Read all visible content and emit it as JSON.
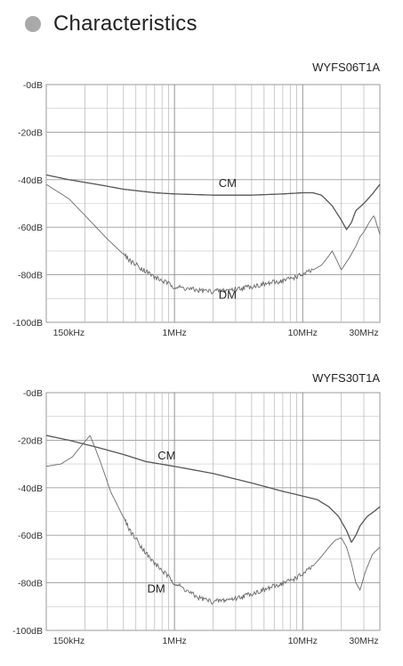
{
  "header": {
    "title": "Characteristics",
    "bullet_color": "#a9a9a9"
  },
  "chart_data": [
    {
      "type": "line",
      "title": "WYFS06T1A",
      "xscale": "log",
      "xlim_hz": [
        100000,
        40000000
      ],
      "ylim": [
        -100,
        0
      ],
      "grid": true,
      "x_ticks": [
        {
          "label": "150kHz",
          "hz": 150000
        },
        {
          "label": "1MHz",
          "hz": 1000000
        },
        {
          "label": "10MHz",
          "hz": 10000000
        },
        {
          "label": "30MHz",
          "hz": 30000000
        }
      ],
      "y_ticks": [
        "-0dB",
        "-20dB",
        "-40dB",
        "-60dB",
        "-80dB",
        "-100dB"
      ],
      "y_tick_values": [
        0,
        -20,
        -40,
        -60,
        -80,
        -100
      ],
      "series": [
        {
          "name": "CM",
          "label_at": {
            "hz": 2600000,
            "db": -43
          },
          "x_hz": [
            100000,
            150000,
            250000,
            400000,
            700000,
            1000000,
            2000000,
            4000000,
            7000000,
            10000000,
            12000000,
            14000000,
            17000000,
            20000000,
            22000000,
            24000000,
            26000000,
            30000000,
            35000000,
            40000000
          ],
          "y_db": [
            -38,
            -40,
            -42,
            -44,
            -45.5,
            -46,
            -46.5,
            -46.5,
            -46,
            -45.5,
            -45.5,
            -46.5,
            -51,
            -57,
            -61,
            -58,
            -53,
            -50,
            -46,
            -42
          ]
        },
        {
          "name": "DM",
          "label_at": {
            "hz": 2600000,
            "db": -90
          },
          "x_hz": [
            100000,
            150000,
            200000,
            300000,
            450000,
            700000,
            1000000,
            1500000,
            2000000,
            3000000,
            5000000,
            7000000,
            10000000,
            12000000,
            14000000,
            15500000,
            17000000,
            18500000,
            20000000,
            23000000,
            26000000,
            28000000,
            30000000,
            33000000,
            36000000,
            40000000
          ],
          "y_db": [
            -42,
            -48,
            -55,
            -65,
            -74,
            -81,
            -85,
            -86.5,
            -87,
            -86,
            -84,
            -82.5,
            -80,
            -78,
            -76,
            -73,
            -70,
            -74,
            -78,
            -73,
            -68,
            -64,
            -62,
            -58,
            -55,
            -63
          ]
        }
      ]
    },
    {
      "type": "line",
      "title": "WYFS30T1A",
      "xscale": "log",
      "xlim_hz": [
        100000,
        40000000
      ],
      "ylim": [
        -100,
        0
      ],
      "grid": true,
      "x_ticks": [
        {
          "label": "150kHz",
          "hz": 150000
        },
        {
          "label": "1MHz",
          "hz": 1000000
        },
        {
          "label": "10MHz",
          "hz": 10000000
        },
        {
          "label": "30MHz",
          "hz": 30000000
        }
      ],
      "y_ticks": [
        "-0dB",
        "-20dB",
        "-40dB",
        "-60dB",
        "-80dB",
        "-100dB"
      ],
      "y_tick_values": [
        0,
        -20,
        -40,
        -60,
        -80,
        -100
      ],
      "series": [
        {
          "name": "CM",
          "label_at": {
            "hz": 870000,
            "db": -28
          },
          "x_hz": [
            100000,
            150000,
            250000,
            400000,
            600000,
            1000000,
            2000000,
            4000000,
            7000000,
            10000000,
            13000000,
            16000000,
            19000000,
            22000000,
            24000000,
            26000000,
            28000000,
            32000000,
            36000000,
            40000000
          ],
          "y_db": [
            -18,
            -20,
            -23,
            -26,
            -29,
            -31,
            -34,
            -38,
            -41.5,
            -43.5,
            -45,
            -48,
            -52,
            -58,
            -63,
            -60,
            -56,
            -52,
            -50,
            -48
          ]
        },
        {
          "name": "DM",
          "label_at": {
            "hz": 720000,
            "db": -84
          },
          "x_hz": [
            100000,
            130000,
            160000,
            190000,
            220000,
            260000,
            320000,
            450000,
            650000,
            1000000,
            1500000,
            2000000,
            3000000,
            5000000,
            8000000,
            10000000,
            12000000,
            14000000,
            16000000,
            18000000,
            20000000,
            22000000,
            24000000,
            26000000,
            28000000,
            31000000,
            35000000,
            40000000
          ],
          "y_db": [
            -31,
            -30,
            -27,
            -22,
            -18,
            -28,
            -42,
            -58,
            -70,
            -80,
            -86,
            -88,
            -86.5,
            -83,
            -79,
            -76.5,
            -73,
            -69,
            -65,
            -62,
            -61,
            -65,
            -72,
            -80,
            -83,
            -75,
            -68,
            -65
          ]
        }
      ]
    }
  ]
}
